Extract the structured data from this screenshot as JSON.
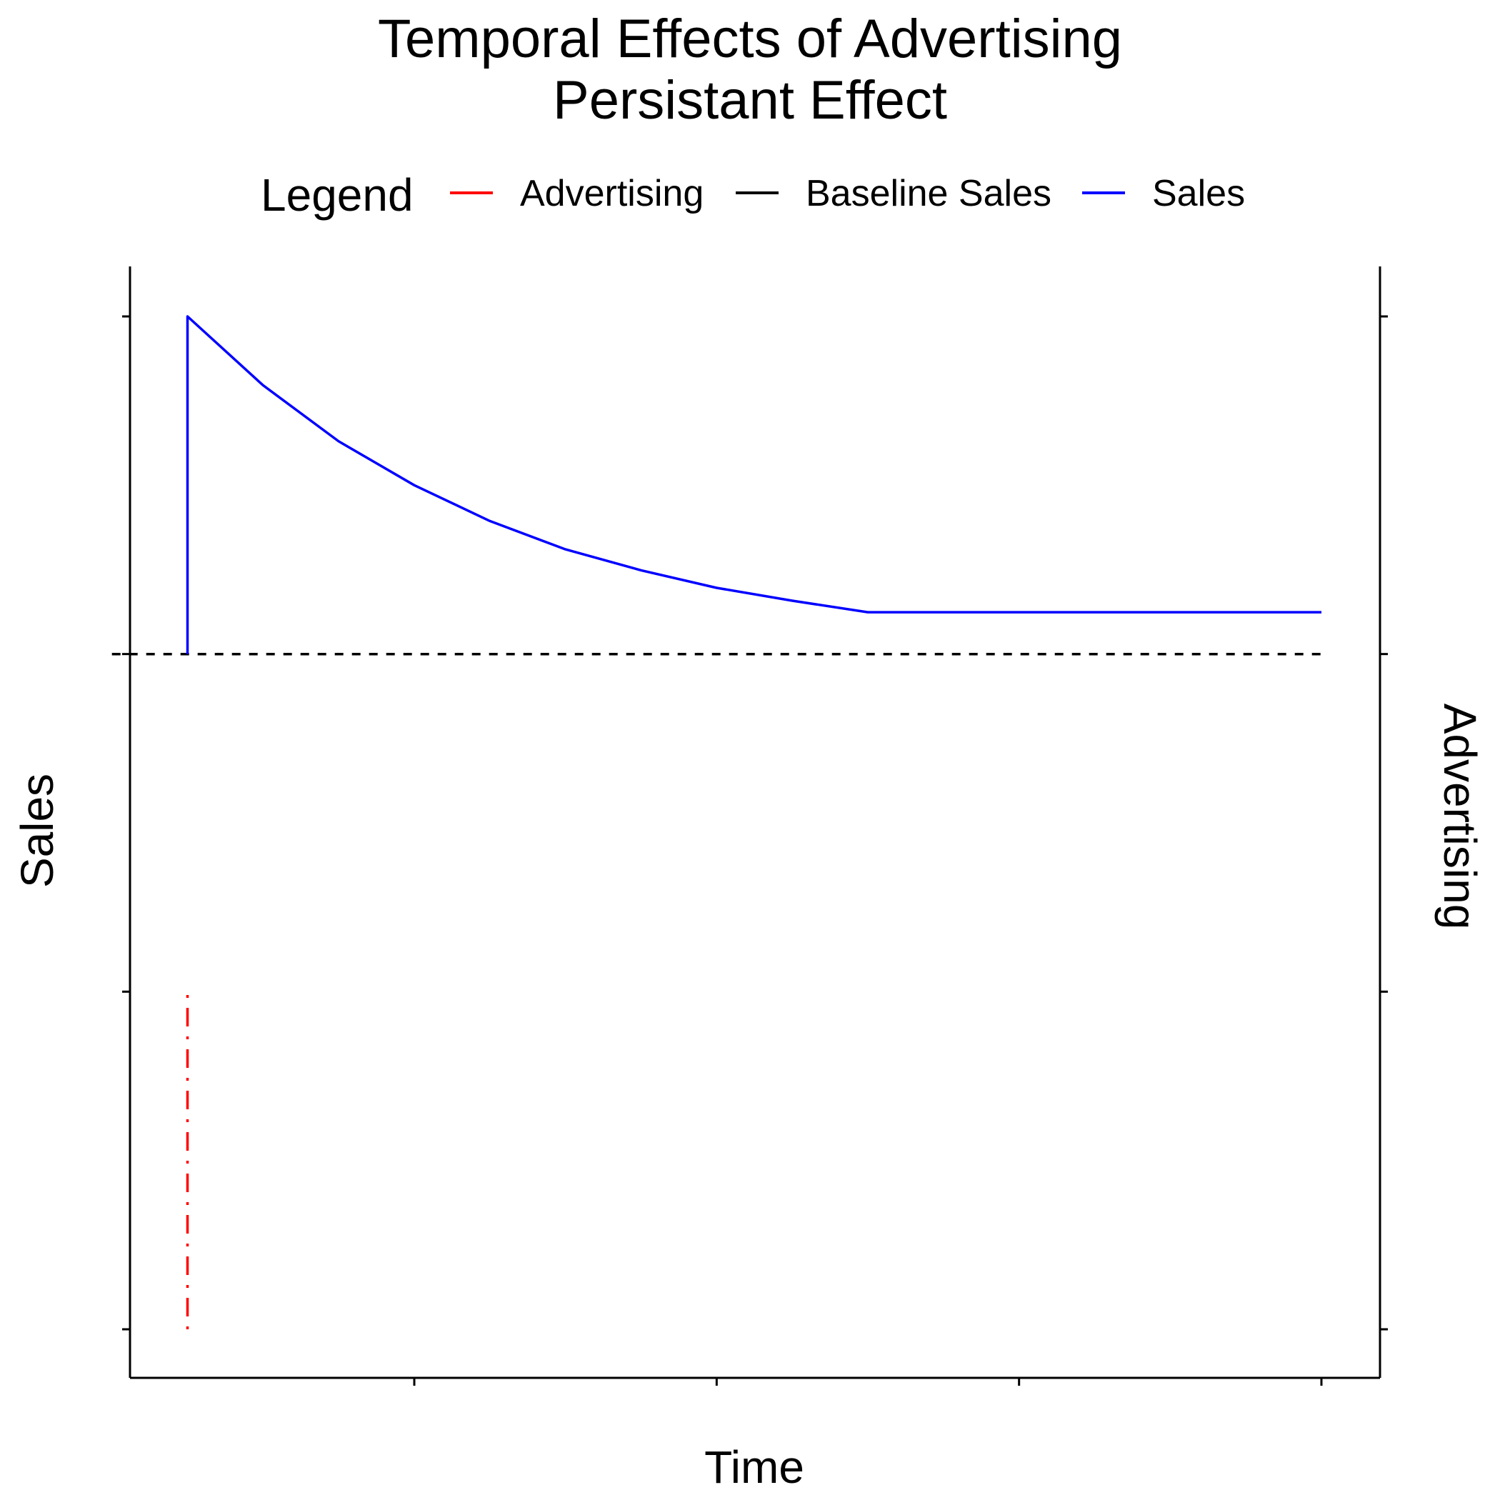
{
  "chart_data": {
    "type": "line",
    "title": "Temporal Effects of Advertising",
    "subtitle": "Persistant Effect",
    "xlabel": "Time",
    "ylabel": "Sales",
    "ylabel_right": "Advertising",
    "legend": {
      "title": "Legend",
      "position": "top",
      "entries": [
        "Advertising",
        "Baseline Sales",
        "Sales"
      ]
    },
    "xlim": [
      0,
      16
    ],
    "ylim": [
      0,
      16
    ],
    "y_ticks": [
      1,
      6,
      11,
      16
    ],
    "x_ticks": [
      4,
      8,
      12,
      16
    ],
    "tick_labels_shown": false,
    "grid": false,
    "colors": {
      "advertising": "#ff0000",
      "baseline": "#000000",
      "sales": "#0000ff",
      "axis": "#000000"
    },
    "series": [
      {
        "name": "Sales",
        "key": "sales",
        "style": "solid",
        "x": [
          1,
          1,
          2,
          3,
          4,
          5,
          6,
          7,
          8,
          9,
          10,
          16
        ],
        "y": [
          11,
          16,
          14.98,
          14.15,
          13.5,
          12.97,
          12.55,
          12.24,
          11.98,
          11.79,
          11.62,
          11.62
        ]
      },
      {
        "name": "Baseline Sales",
        "key": "baseline",
        "style": "dashed",
        "x": [
          0,
          16
        ],
        "y": [
          11,
          11
        ]
      },
      {
        "name": "Advertising",
        "key": "advertising",
        "style": "dotdash",
        "x": [
          1,
          1
        ],
        "y": [
          1,
          6
        ]
      }
    ]
  }
}
